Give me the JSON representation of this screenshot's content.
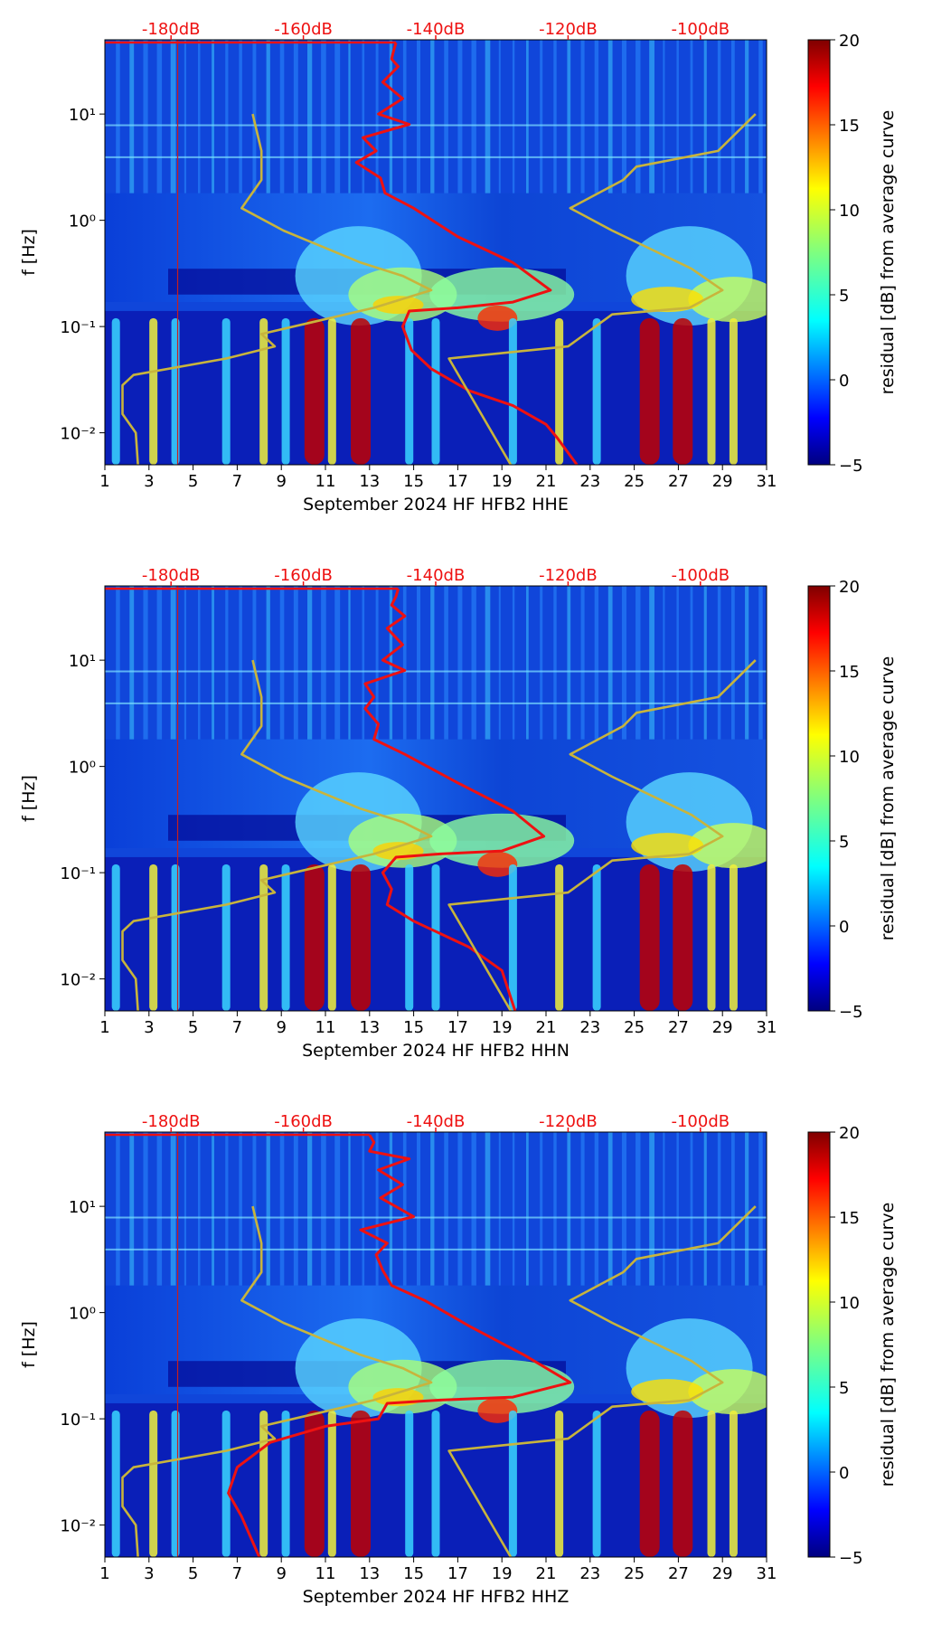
{
  "chart_data": [
    {
      "type": "heatmap",
      "title": "",
      "xlabel": "September 2024 HF HFB2  HHE",
      "ylabel": "f [Hz]",
      "x_range": [
        1,
        31
      ],
      "y_range_hz": [
        0.005,
        50
      ],
      "y_scale": "log",
      "x_ticks": [
        "1",
        "3",
        "5",
        "7",
        "9",
        "11",
        "13",
        "15",
        "17",
        "19",
        "21",
        "23",
        "25",
        "27",
        "29",
        "31"
      ],
      "y_ticks": [
        {
          "value": 0.01,
          "label": "10⁻²"
        },
        {
          "value": 0.1,
          "label": "10⁻¹"
        },
        {
          "value": 1,
          "label": "10⁰"
        },
        {
          "value": 10,
          "label": "10¹"
        }
      ],
      "top_ticks": [
        {
          "x": 4,
          "label": "-180dB"
        },
        {
          "x": 10,
          "label": "-160dB"
        },
        {
          "x": 16,
          "label": "-140dB"
        },
        {
          "x": 22,
          "label": "-120dB"
        },
        {
          "x": 28,
          "label": "-100dB"
        }
      ],
      "colorbar": {
        "label": "residual [dB] from average curve",
        "min": -5,
        "max": 20,
        "ticks": [
          "20",
          "15",
          "10",
          "5",
          "0",
          "−5"
        ]
      },
      "series": [
        {
          "name": "average noise curve",
          "color": "#ee1111",
          "points": [
            [
              14.2,
              47
            ],
            [
              14.1,
              40
            ],
            [
              14.0,
              33
            ],
            [
              14.3,
              28
            ],
            [
              13.6,
              20
            ],
            [
              14.5,
              14
            ],
            [
              13.4,
              10
            ],
            [
              14.8,
              8
            ],
            [
              12.7,
              6
            ],
            [
              13.3,
              4.5
            ],
            [
              12.4,
              3.5
            ],
            [
              13.5,
              2.5
            ],
            [
              13.7,
              1.8
            ],
            [
              15.0,
              1.3
            ],
            [
              17.0,
              0.7
            ],
            [
              19.5,
              0.4
            ],
            [
              21.2,
              0.22
            ],
            [
              19.5,
              0.17
            ],
            [
              17.0,
              0.15
            ],
            [
              14.8,
              0.14
            ],
            [
              14.5,
              0.1
            ],
            [
              14.9,
              0.06
            ],
            [
              15.8,
              0.04
            ],
            [
              17.5,
              0.025
            ],
            [
              19.5,
              0.018
            ],
            [
              21.0,
              0.012
            ],
            [
              21.5,
              0.009
            ],
            [
              22.4,
              0.005
            ]
          ]
        },
        {
          "name": "noise model curve left",
          "color": "#c8b43c",
          "points": [
            [
              7.7,
              10
            ],
            [
              8.1,
              4.5
            ],
            [
              8.1,
              2.4
            ],
            [
              7.2,
              1.3
            ],
            [
              9.1,
              0.8
            ],
            [
              12.6,
              0.4
            ],
            [
              14.5,
              0.3
            ],
            [
              15.8,
              0.22
            ],
            [
              13.2,
              0.15
            ],
            [
              10.4,
              0.11
            ],
            [
              8.1,
              0.085
            ],
            [
              8.7,
              0.065
            ],
            [
              6.5,
              0.05
            ],
            [
              2.3,
              0.035
            ],
            [
              1.8,
              0.028
            ],
            [
              1.8,
              0.015
            ],
            [
              2.4,
              0.01
            ],
            [
              2.5,
              0.005
            ]
          ]
        },
        {
          "name": "noise model curve right",
          "color": "#c8b43c",
          "points": [
            [
              30.5,
              10
            ],
            [
              28.8,
              4.5
            ],
            [
              25.1,
              3.2
            ],
            [
              24.5,
              2.4
            ],
            [
              22.1,
              1.3
            ],
            [
              24.0,
              0.8
            ],
            [
              27.6,
              0.35
            ],
            [
              29.0,
              0.22
            ],
            [
              27.5,
              0.15
            ],
            [
              24.0,
              0.13
            ],
            [
              22.0,
              0.065
            ],
            [
              16.6,
              0.05
            ],
            [
              19.4,
              0.005
            ]
          ]
        }
      ],
      "red_vline_x": 4.3
    },
    {
      "type": "heatmap",
      "title": "",
      "xlabel": "September 2024 HF HFB2  HHN",
      "ylabel": "f [Hz]",
      "x_range": [
        1,
        31
      ],
      "y_range_hz": [
        0.005,
        50
      ],
      "y_scale": "log",
      "x_ticks": [
        "1",
        "3",
        "5",
        "7",
        "9",
        "11",
        "13",
        "15",
        "17",
        "19",
        "21",
        "23",
        "25",
        "27",
        "29",
        "31"
      ],
      "y_ticks": [
        {
          "value": 0.01,
          "label": "10⁻²"
        },
        {
          "value": 0.1,
          "label": "10⁻¹"
        },
        {
          "value": 1,
          "label": "10⁰"
        },
        {
          "value": 10,
          "label": "10¹"
        }
      ],
      "top_ticks": [
        {
          "x": 4,
          "label": "-180dB"
        },
        {
          "x": 10,
          "label": "-160dB"
        },
        {
          "x": 16,
          "label": "-140dB"
        },
        {
          "x": 22,
          "label": "-120dB"
        },
        {
          "x": 28,
          "label": "-100dB"
        }
      ],
      "colorbar": {
        "label": "residual [dB] from average curve",
        "min": -5,
        "max": 20,
        "ticks": [
          "20",
          "15",
          "10",
          "5",
          "0",
          "−5"
        ]
      },
      "series": [
        {
          "name": "average noise curve",
          "color": "#ee1111",
          "points": [
            [
              14.3,
              47
            ],
            [
              14.2,
              40
            ],
            [
              14.0,
              33
            ],
            [
              14.6,
              26
            ],
            [
              13.8,
              20
            ],
            [
              14.5,
              14
            ],
            [
              13.6,
              10
            ],
            [
              14.6,
              8
            ],
            [
              12.8,
              6
            ],
            [
              13.2,
              4.5
            ],
            [
              12.8,
              3.5
            ],
            [
              13.4,
              2.5
            ],
            [
              13.2,
              1.8
            ],
            [
              14.6,
              1.3
            ],
            [
              17.0,
              0.7
            ],
            [
              19.5,
              0.38
            ],
            [
              20.9,
              0.22
            ],
            [
              19.0,
              0.16
            ],
            [
              16.2,
              0.15
            ],
            [
              14.2,
              0.14
            ],
            [
              13.6,
              0.1
            ],
            [
              14.0,
              0.07
            ],
            [
              13.8,
              0.05
            ],
            [
              15.0,
              0.035
            ],
            [
              17.5,
              0.02
            ],
            [
              19.0,
              0.012
            ],
            [
              19.6,
              0.005
            ]
          ]
        },
        {
          "name": "noise model curve left",
          "color": "#c8b43c",
          "points": [
            [
              7.7,
              10
            ],
            [
              8.1,
              4.5
            ],
            [
              8.1,
              2.4
            ],
            [
              7.2,
              1.3
            ],
            [
              9.1,
              0.8
            ],
            [
              12.6,
              0.4
            ],
            [
              14.5,
              0.3
            ],
            [
              15.8,
              0.22
            ],
            [
              13.2,
              0.15
            ],
            [
              10.4,
              0.11
            ],
            [
              8.1,
              0.085
            ],
            [
              8.7,
              0.065
            ],
            [
              6.5,
              0.05
            ],
            [
              2.3,
              0.035
            ],
            [
              1.8,
              0.028
            ],
            [
              1.8,
              0.015
            ],
            [
              2.4,
              0.01
            ],
            [
              2.5,
              0.005
            ]
          ]
        },
        {
          "name": "noise model curve right",
          "color": "#c8b43c",
          "points": [
            [
              30.5,
              10
            ],
            [
              28.8,
              4.5
            ],
            [
              25.1,
              3.2
            ],
            [
              24.5,
              2.4
            ],
            [
              22.1,
              1.3
            ],
            [
              24.0,
              0.8
            ],
            [
              27.6,
              0.35
            ],
            [
              29.0,
              0.22
            ],
            [
              27.5,
              0.15
            ],
            [
              24.0,
              0.13
            ],
            [
              22.0,
              0.065
            ],
            [
              16.6,
              0.05
            ],
            [
              19.4,
              0.005
            ]
          ]
        }
      ],
      "red_vline_x": 4.3
    },
    {
      "type": "heatmap",
      "title": "",
      "xlabel": "September 2024 HF HFB2  HHZ",
      "ylabel": "f [Hz]",
      "x_range": [
        1,
        31
      ],
      "y_range_hz": [
        0.005,
        50
      ],
      "y_scale": "log",
      "x_ticks": [
        "1",
        "3",
        "5",
        "7",
        "9",
        "11",
        "13",
        "15",
        "17",
        "19",
        "21",
        "23",
        "25",
        "27",
        "29",
        "31"
      ],
      "y_ticks": [
        {
          "value": 0.01,
          "label": "10⁻²"
        },
        {
          "value": 0.1,
          "label": "10⁻¹"
        },
        {
          "value": 1,
          "label": "10⁰"
        },
        {
          "value": 10,
          "label": "10¹"
        }
      ],
      "top_ticks": [
        {
          "x": 4,
          "label": "-180dB"
        },
        {
          "x": 10,
          "label": "-160dB"
        },
        {
          "x": 16,
          "label": "-140dB"
        },
        {
          "x": 22,
          "label": "-120dB"
        },
        {
          "x": 28,
          "label": "-100dB"
        }
      ],
      "colorbar": {
        "label": "residual [dB] from average curve",
        "min": -5,
        "max": 20,
        "ticks": [
          "20",
          "15",
          "10",
          "5",
          "0",
          "−5"
        ]
      },
      "series": [
        {
          "name": "average noise curve",
          "color": "#ee1111",
          "points": [
            [
              13.0,
              47
            ],
            [
              13.2,
              40
            ],
            [
              13.0,
              33
            ],
            [
              14.8,
              28
            ],
            [
              13.4,
              22
            ],
            [
              14.5,
              16
            ],
            [
              13.5,
              12
            ],
            [
              15.0,
              8
            ],
            [
              12.6,
              6
            ],
            [
              13.8,
              4.5
            ],
            [
              13.3,
              3.5
            ],
            [
              13.6,
              2.5
            ],
            [
              14.0,
              1.8
            ],
            [
              15.5,
              1.3
            ],
            [
              17.5,
              0.75
            ],
            [
              20.0,
              0.4
            ],
            [
              22.1,
              0.22
            ],
            [
              19.5,
              0.16
            ],
            [
              16.2,
              0.15
            ],
            [
              13.8,
              0.14
            ],
            [
              13.4,
              0.1
            ],
            [
              11.0,
              0.085
            ],
            [
              8.5,
              0.06
            ],
            [
              7.0,
              0.035
            ],
            [
              6.6,
              0.02
            ],
            [
              7.2,
              0.012
            ],
            [
              8.0,
              0.005
            ]
          ]
        },
        {
          "name": "noise model curve left",
          "color": "#c8b43c",
          "points": [
            [
              7.7,
              10
            ],
            [
              8.1,
              4.5
            ],
            [
              8.1,
              2.4
            ],
            [
              7.2,
              1.3
            ],
            [
              9.1,
              0.8
            ],
            [
              12.6,
              0.4
            ],
            [
              14.5,
              0.3
            ],
            [
              15.8,
              0.22
            ],
            [
              13.2,
              0.15
            ],
            [
              10.4,
              0.11
            ],
            [
              8.1,
              0.085
            ],
            [
              8.7,
              0.065
            ],
            [
              6.5,
              0.05
            ],
            [
              2.3,
              0.035
            ],
            [
              1.8,
              0.028
            ],
            [
              1.8,
              0.015
            ],
            [
              2.4,
              0.01
            ],
            [
              2.5,
              0.005
            ]
          ]
        },
        {
          "name": "noise model curve right",
          "color": "#c8b43c",
          "points": [
            [
              30.5,
              10
            ],
            [
              28.8,
              4.5
            ],
            [
              25.1,
              3.2
            ],
            [
              24.5,
              2.4
            ],
            [
              22.1,
              1.3
            ],
            [
              24.0,
              0.8
            ],
            [
              27.6,
              0.35
            ],
            [
              29.0,
              0.22
            ],
            [
              27.5,
              0.15
            ],
            [
              24.0,
              0.13
            ],
            [
              22.0,
              0.065
            ],
            [
              16.6,
              0.05
            ],
            [
              19.4,
              0.005
            ]
          ]
        }
      ],
      "red_vline_x": 4.3
    }
  ]
}
